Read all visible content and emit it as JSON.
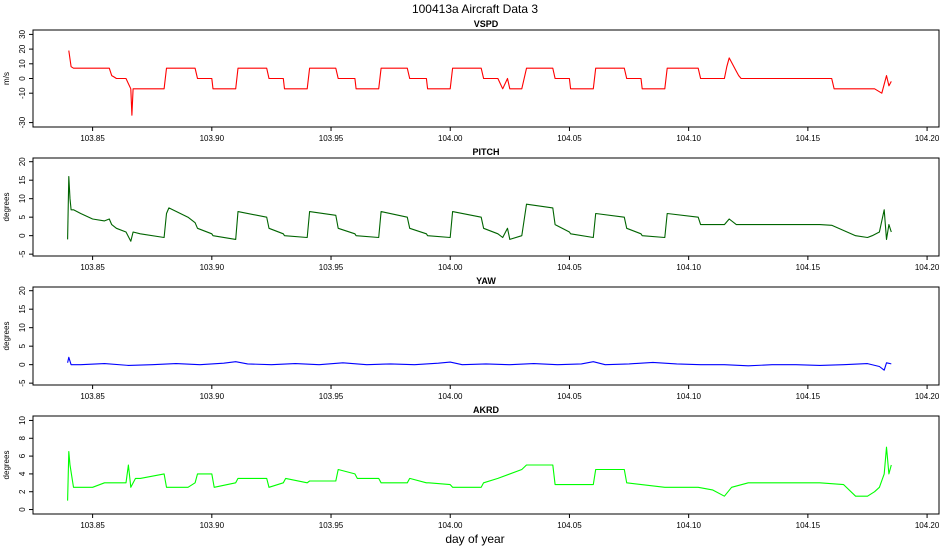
{
  "figure": {
    "title": "100413a   Aircraft Data 3",
    "xlabel": "day of year"
  },
  "chart_data": [
    {
      "type": "line",
      "title": "VSPD",
      "ylabel": "m/s",
      "color": "#ff0000",
      "xlim": [
        103.825,
        104.205
      ],
      "ylim": [
        -33,
        33
      ],
      "xticks": [
        103.85,
        103.9,
        103.95,
        104.0,
        104.05,
        104.1,
        104.15,
        104.2
      ],
      "xtick_labels": [
        "103.85",
        "103.90",
        "103.95",
        "104.00",
        "104.05",
        "104.10",
        "104.15",
        "104.20"
      ],
      "yticks": [
        -30,
        -10,
        0,
        10,
        20,
        30
      ],
      "ytick_labels": [
        "-30",
        "-10",
        "0",
        "10",
        "20",
        "30"
      ],
      "x": [
        103.84,
        103.841,
        103.842,
        103.844,
        103.85,
        103.857,
        103.858,
        103.859,
        103.86,
        103.864,
        103.866,
        103.8665,
        103.867,
        103.868,
        103.872,
        103.88,
        103.881,
        103.893,
        103.894,
        103.9,
        103.9005,
        103.91,
        103.911,
        103.923,
        103.924,
        103.93,
        103.9305,
        103.94,
        103.941,
        103.952,
        103.953,
        103.96,
        103.9605,
        103.97,
        103.971,
        103.982,
        103.983,
        103.99,
        103.9905,
        104.0,
        104.001,
        104.013,
        104.014,
        104.02,
        104.022,
        104.024,
        104.025,
        104.03,
        104.032,
        104.043,
        104.044,
        104.05,
        104.0505,
        104.06,
        104.061,
        104.073,
        104.074,
        104.08,
        104.0805,
        104.09,
        104.091,
        104.104,
        104.105,
        104.115,
        104.116,
        104.117,
        104.12,
        104.121,
        104.122,
        104.125,
        104.135,
        104.145,
        104.155,
        104.16,
        104.161,
        104.17,
        104.177,
        104.178,
        104.181,
        104.183,
        104.184,
        104.185
      ],
      "y": [
        19,
        8,
        7,
        7,
        7,
        7,
        2,
        1,
        0,
        0,
        -7,
        -25,
        -7,
        -7,
        -7,
        -7,
        7,
        7,
        0,
        0,
        -7,
        -7,
        7,
        7,
        0,
        0,
        -7,
        -7,
        7,
        7,
        0,
        0,
        -7,
        -7,
        7,
        7,
        0,
        0,
        -7,
        -7,
        7,
        7,
        0,
        0,
        -7,
        0,
        -7,
        -7,
        7,
        7,
        0,
        0,
        -7,
        -7,
        7,
        7,
        0,
        0,
        -7,
        -7,
        7,
        7,
        0,
        0,
        8,
        14,
        5,
        2,
        0,
        0,
        0,
        0,
        0,
        0,
        -7,
        -7,
        -7,
        -7,
        -10,
        2,
        -5,
        -2
      ]
    },
    {
      "type": "line",
      "title": "PITCH",
      "ylabel": "degrees",
      "color": "#006400",
      "xlim": [
        103.825,
        104.205
      ],
      "ylim": [
        -5.5,
        21
      ],
      "xticks": [
        103.85,
        103.9,
        103.95,
        104.0,
        104.05,
        104.1,
        104.15,
        104.2
      ],
      "xtick_labels": [
        "103.85",
        "103.90",
        "103.95",
        "104.00",
        "104.05",
        "104.10",
        "104.15",
        "104.20"
      ],
      "yticks": [
        -5,
        0,
        5,
        10,
        15,
        20
      ],
      "ytick_labels": [
        "-5",
        "0",
        "5",
        "10",
        "15",
        "20"
      ],
      "x": [
        103.8395,
        103.84,
        103.8405,
        103.841,
        103.842,
        103.845,
        103.85,
        103.855,
        103.857,
        103.858,
        103.86,
        103.864,
        103.866,
        103.867,
        103.87,
        103.88,
        103.881,
        103.882,
        103.89,
        103.893,
        103.894,
        103.9,
        103.9005,
        103.91,
        103.911,
        103.923,
        103.924,
        103.93,
        103.9305,
        103.94,
        103.941,
        103.952,
        103.953,
        103.96,
        103.9605,
        103.97,
        103.971,
        103.982,
        103.983,
        103.99,
        103.9905,
        104.0,
        104.001,
        104.013,
        104.014,
        104.02,
        104.022,
        104.024,
        104.025,
        104.03,
        104.032,
        104.043,
        104.044,
        104.05,
        104.0505,
        104.06,
        104.061,
        104.073,
        104.074,
        104.08,
        104.0805,
        104.09,
        104.091,
        104.104,
        104.105,
        104.115,
        104.117,
        104.12,
        104.125,
        104.14,
        104.155,
        104.16,
        104.17,
        104.175,
        104.177,
        104.18,
        104.182,
        104.183,
        104.184,
        104.185
      ],
      "y": [
        -1,
        16,
        10,
        7,
        7,
        6,
        4.5,
        4,
        4.5,
        3,
        2,
        1,
        -1.5,
        1,
        0.5,
        -0.5,
        6,
        7.5,
        5,
        3.5,
        2,
        0.5,
        0,
        -1,
        6.5,
        5,
        2,
        0.5,
        0,
        -0.5,
        6.5,
        5.5,
        2,
        0.5,
        0,
        -0.5,
        6.5,
        5,
        2,
        0.5,
        0,
        -0.5,
        6.5,
        5,
        2,
        0.5,
        -0.5,
        2,
        -1,
        0,
        8.5,
        7.5,
        3,
        1,
        0.5,
        -0.5,
        6,
        5,
        2,
        0.5,
        0,
        -0.5,
        6,
        5,
        3,
        3,
        4.5,
        3,
        3,
        3,
        3,
        2.8,
        0,
        -0.5,
        0,
        1,
        7,
        -1,
        3,
        1
      ]
    },
    {
      "type": "line",
      "title": "YAW",
      "ylabel": "degrees",
      "color": "#0000ff",
      "xlim": [
        103.825,
        104.205
      ],
      "ylim": [
        -5.5,
        21
      ],
      "xticks": [
        103.85,
        103.9,
        103.95,
        104.0,
        104.05,
        104.1,
        104.15,
        104.2
      ],
      "xtick_labels": [
        "103.85",
        "103.90",
        "103.95",
        "104.00",
        "104.05",
        "104.10",
        "104.15",
        "104.20"
      ],
      "yticks": [
        -5,
        0,
        5,
        10,
        15,
        20
      ],
      "ytick_labels": [
        "-5",
        "0",
        "5",
        "10",
        "15",
        "20"
      ],
      "x": [
        103.8395,
        103.84,
        103.841,
        103.845,
        103.855,
        103.865,
        103.875,
        103.885,
        103.895,
        103.905,
        103.91,
        103.915,
        103.925,
        103.935,
        103.945,
        103.955,
        103.965,
        103.975,
        103.985,
        103.995,
        104.0,
        104.005,
        104.015,
        104.025,
        104.035,
        104.045,
        104.055,
        104.06,
        104.065,
        104.075,
        104.085,
        104.095,
        104.105,
        104.115,
        104.125,
        104.135,
        104.145,
        104.155,
        104.165,
        104.175,
        104.18,
        104.182,
        104.183,
        104.185
      ],
      "y": [
        0.5,
        2,
        0,
        0,
        0.3,
        -0.2,
        0,
        0.3,
        0,
        0.4,
        0.8,
        0.2,
        0,
        0.3,
        0,
        0.5,
        0,
        0.2,
        0,
        0.4,
        0.7,
        0,
        0.2,
        0,
        0.3,
        0,
        0.2,
        0.8,
        0,
        0.2,
        0.6,
        0.2,
        0,
        0,
        -0.3,
        0,
        0,
        -0.2,
        0,
        0.3,
        -0.5,
        -1.5,
        0.5,
        0.2
      ]
    },
    {
      "type": "line",
      "title": "AKRD",
      "ylabel": "degrees",
      "color": "#00ff00",
      "xlim": [
        103.825,
        104.205
      ],
      "ylim": [
        -0.5,
        10.5
      ],
      "xticks": [
        103.85,
        103.9,
        103.95,
        104.0,
        104.05,
        104.1,
        104.15,
        104.2
      ],
      "xtick_labels": [
        "103.85",
        "103.90",
        "103.95",
        "104.00",
        "104.05",
        "104.10",
        "104.15",
        "104.20"
      ],
      "yticks": [
        0,
        2,
        4,
        6,
        8,
        10
      ],
      "ytick_labels": [
        "0",
        "2",
        "4",
        "6",
        "8",
        "10"
      ],
      "x": [
        103.8395,
        103.84,
        103.8405,
        103.842,
        103.845,
        103.85,
        103.855,
        103.858,
        103.86,
        103.864,
        103.865,
        103.866,
        103.868,
        103.87,
        103.88,
        103.881,
        103.89,
        103.893,
        103.894,
        103.9,
        103.901,
        103.91,
        103.911,
        103.923,
        103.924,
        103.93,
        103.931,
        103.94,
        103.941,
        103.952,
        103.953,
        103.96,
        103.961,
        103.97,
        103.971,
        103.982,
        103.983,
        103.99,
        103.991,
        104.0,
        104.001,
        104.013,
        104.014,
        104.02,
        104.03,
        104.032,
        104.043,
        104.044,
        104.06,
        104.061,
        104.073,
        104.074,
        104.09,
        104.104,
        104.11,
        104.115,
        104.118,
        104.125,
        104.14,
        104.155,
        104.165,
        104.17,
        104.175,
        104.178,
        104.18,
        104.182,
        104.183,
        104.184,
        104.185
      ],
      "y": [
        1,
        6.5,
        5,
        2.5,
        2.5,
        2.5,
        3,
        3,
        3,
        3,
        5,
        2.5,
        3.5,
        3.5,
        4,
        2.5,
        2.5,
        3,
        4,
        4,
        2.5,
        3,
        3.5,
        3.5,
        2.5,
        3,
        3.5,
        3,
        3.2,
        3.2,
        4.5,
        4,
        3.5,
        3.5,
        3,
        3,
        3.5,
        3,
        3,
        2.8,
        2.5,
        2.5,
        3,
        3.5,
        4.5,
        5,
        5,
        2.8,
        2.8,
        4.5,
        4.5,
        3,
        2.5,
        2.5,
        2.2,
        1.5,
        2.5,
        3,
        3,
        3,
        2.8,
        1.5,
        1.5,
        2,
        2.5,
        4,
        7,
        4,
        5
      ]
    }
  ]
}
